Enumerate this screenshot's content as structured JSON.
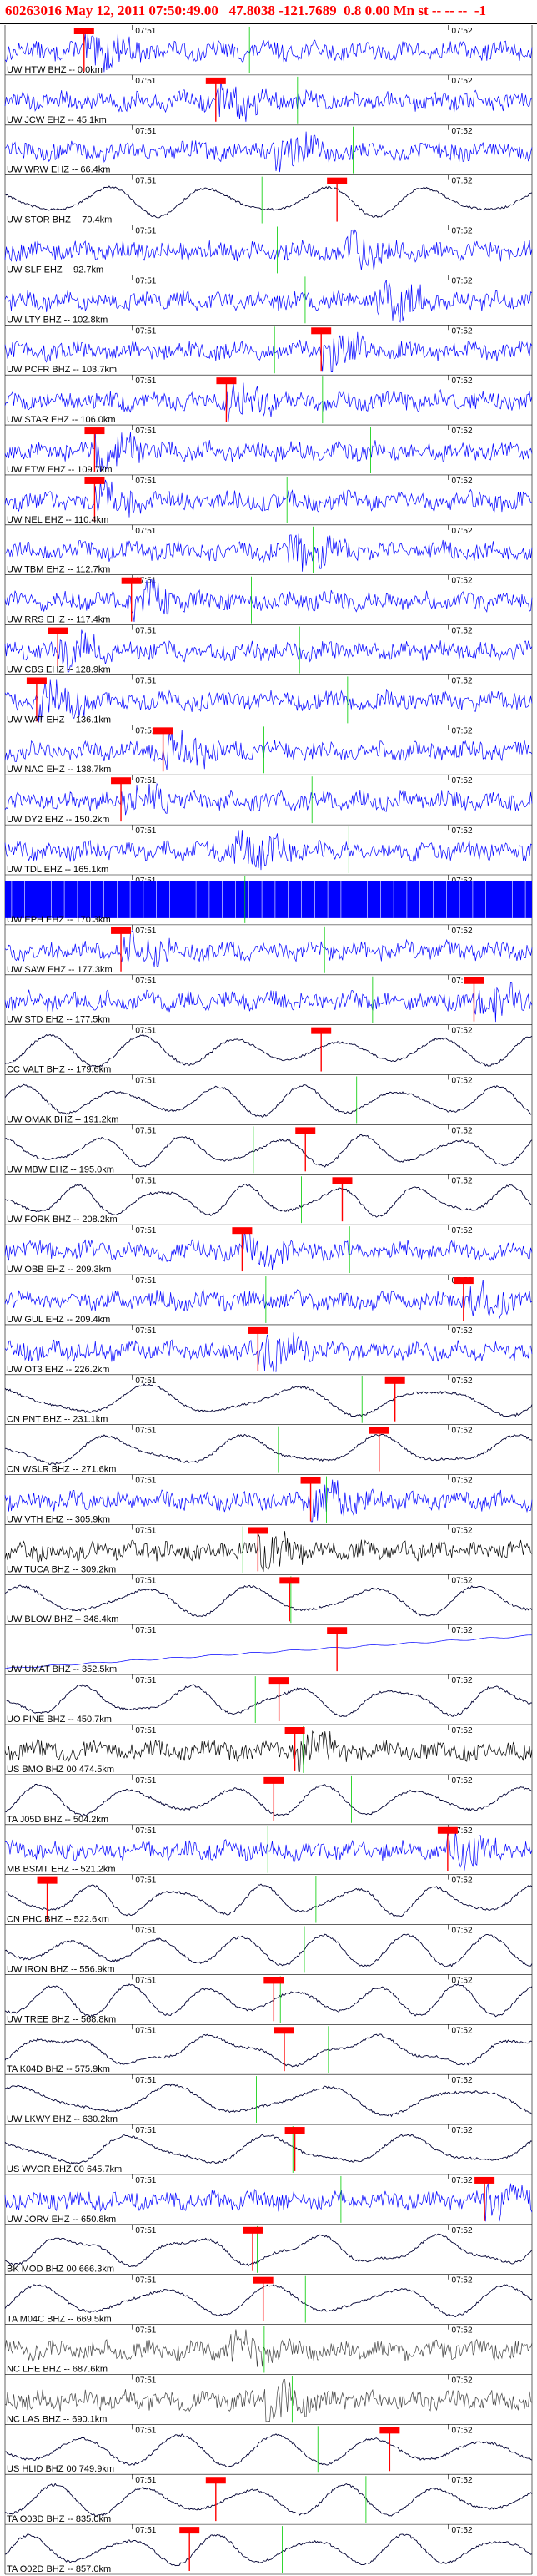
{
  "header": {
    "title": "60263016 May 12, 2011 07:50:49.00   47.8038 -121.7689  0.8 0.00 Mn st -- -- --  -1"
  },
  "colors": {
    "waveform": "#0000ff",
    "waveform_alt": "#000033",
    "pick_marker": "#ff0000",
    "arrival_line": "#00cc00",
    "header_text": "#ff0000"
  },
  "chart_data": {
    "type": "waveform",
    "title": "60263016 May 12, 2011 07:50:49.00   47.8038 -121.7689  0.8 0.00 Mn st -- -- --  -1",
    "x_unit": "time",
    "time_ticks": [
      "07:51",
      "07:52"
    ],
    "traces": [
      {
        "label": "UW HTW BHZ -- 0.0km",
        "times": [
          "07:51",
          "07:52"
        ],
        "style": "blue",
        "pick": 0.15
      },
      {
        "label": "UW JCW EHZ -- 45.1km",
        "times": [
          "07:51",
          "07:52"
        ],
        "style": "blue",
        "pick": 0.4
      },
      {
        "label": "UW WRW EHZ -- 66.4km",
        "times": [
          "07:51",
          "07:52"
        ],
        "style": "blue",
        "pick": null
      },
      {
        "label": "UW STOR BHZ -- 70.4km",
        "times": [
          "07:51",
          "07:52"
        ],
        "style": "dark",
        "pick": 0.63
      },
      {
        "label": "UW SLF EHZ -- 92.7km",
        "times": [
          "07:51",
          "07:52"
        ],
        "style": "blue",
        "pick": null
      },
      {
        "label": "UW LTY BHZ -- 102.8km",
        "times": [
          "07:51",
          "07:52"
        ],
        "style": "blue",
        "pick": null
      },
      {
        "label": "UW PCFR BHZ -- 103.7km",
        "times": [
          "07:51",
          "07:52"
        ],
        "style": "blue",
        "pick": 0.6
      },
      {
        "label": "UW STAR EHZ -- 106.0km",
        "times": [
          "07:51",
          "07:52"
        ],
        "style": "blue",
        "pick": 0.42
      },
      {
        "label": "UW ETW EHZ -- 109.7km",
        "times": [
          "07:51",
          "07:52"
        ],
        "style": "blue",
        "pick": 0.17
      },
      {
        "label": "UW NEL EHZ -- 110.4km",
        "times": [
          "07:51",
          "07:52"
        ],
        "style": "blue",
        "pick": 0.17
      },
      {
        "label": "UW TBM EHZ -- 112.7km",
        "times": [
          "07:51",
          "07:52"
        ],
        "style": "blue",
        "pick": null
      },
      {
        "label": "UW RRS EHZ -- 117.4km",
        "times": [
          "07:51",
          "07:52"
        ],
        "style": "blue",
        "pick": 0.24
      },
      {
        "label": "UW CBS EHZ -- 128.9km",
        "times": [
          "07:51",
          "07:52"
        ],
        "style": "blue",
        "pick": 0.1
      },
      {
        "label": "UW WAT EHZ -- 136.1km",
        "times": [
          "07:51",
          "07:52"
        ],
        "style": "blue",
        "pick": 0.06
      },
      {
        "label": "UW NAC EHZ -- 138.7km",
        "times": [
          "07:51",
          "07:52"
        ],
        "style": "blue",
        "pick": 0.3
      },
      {
        "label": "UW DY2 EHZ -- 150.2km",
        "times": [
          "07:51",
          "07:52"
        ],
        "style": "blue",
        "pick": 0.22
      },
      {
        "label": "UW TDL EHZ -- 165.1km",
        "times": [
          "07:51",
          "07:52"
        ],
        "style": "blue",
        "pick": null
      },
      {
        "label": "UW EPH EHZ -- 170.3km",
        "times": [
          "07:51",
          "07:52"
        ],
        "style": "solid",
        "pick": null
      },
      {
        "label": "UW SAW EHZ -- 177.3km",
        "times": [
          "07:51",
          "07:52"
        ],
        "style": "blue",
        "pick": 0.22
      },
      {
        "label": "UW STD EHZ -- 177.5km",
        "times": [
          "07:51",
          "07:52"
        ],
        "style": "blue",
        "pick": 0.89
      },
      {
        "label": "CC VALT BHZ -- 179.6km",
        "times": [
          "07:51",
          "07:52"
        ],
        "style": "dark",
        "pick": 0.6
      },
      {
        "label": "UW OMAK BHZ -- 191.2km",
        "times": [
          "07:51",
          "07:52"
        ],
        "style": "dark",
        "pick": null
      },
      {
        "label": "UW MBW EHZ -- 195.0km",
        "times": [
          "07:51",
          "07:52"
        ],
        "style": "dark",
        "pick": 0.57
      },
      {
        "label": "UW FORK BHZ -- 208.2km",
        "times": [
          "07:51",
          "07:52"
        ],
        "style": "dark",
        "pick": 0.64
      },
      {
        "label": "UW OBB EHZ -- 209.3km",
        "times": [
          "07:51",
          "07:52"
        ],
        "style": "blue",
        "pick": 0.45
      },
      {
        "label": "UW GUL EHZ -- 209.4km",
        "times": [
          "07:51",
          "07:52"
        ],
        "style": "blue",
        "pick": 0.87
      },
      {
        "label": "UW OT3 EHZ -- 226.2km",
        "times": [
          "07:51",
          "07:52"
        ],
        "style": "blue",
        "pick": 0.48
      },
      {
        "label": "CN PNT BHZ -- 231.1km",
        "times": [
          "07:51",
          "07:52"
        ],
        "style": "dark",
        "pick": 0.74
      },
      {
        "label": "CN WSLR BHZ -- 271.6km",
        "times": [
          "07:51",
          "07:52"
        ],
        "style": "dark",
        "pick": 0.71
      },
      {
        "label": "UW VTH EHZ -- 305.9km",
        "times": [
          "07:51",
          "07:52"
        ],
        "style": "blue",
        "pick": 0.58
      },
      {
        "label": "UW TUCA BHZ -- 309.2km",
        "times": [
          "07:51",
          "07:52"
        ],
        "style": "black",
        "pick": 0.48
      },
      {
        "label": "UW BLOW BHZ -- 348.4km",
        "times": [
          "07:51",
          "07:52"
        ],
        "style": "dark",
        "pick": 0.54
      },
      {
        "label": "UW UMAT BHZ -- 352.5km",
        "times": [
          "07:51",
          "07:52"
        ],
        "style": "drift",
        "pick": 0.63
      },
      {
        "label": "UO PINE BHZ -- 450.7km",
        "times": [
          "07:51",
          "07:52"
        ],
        "style": "dark",
        "pick": 0.52
      },
      {
        "label": "US BMO BHZ 00 474.5km",
        "times": [
          "07:51",
          "07:52"
        ],
        "style": "black",
        "pick": 0.55
      },
      {
        "label": "TA J05D BHZ -- 504.2km",
        "times": [
          "07:51",
          "07:52"
        ],
        "style": "dark",
        "pick": 0.51
      },
      {
        "label": "MB BSMT EHZ -- 521.2km",
        "times": [
          "07:51",
          "07:52"
        ],
        "style": "blue",
        "pick": 0.84
      },
      {
        "label": "CN PHC BHZ -- 522.6km",
        "times": [
          "07:51",
          "07:52"
        ],
        "style": "dark",
        "pick": 0.08
      },
      {
        "label": "UW IRON BHZ -- 556.9km",
        "times": [
          "07:51",
          "07:52"
        ],
        "style": "dark",
        "pick": null
      },
      {
        "label": "UW TREE BHZ -- 568.8km",
        "times": [
          "07:51",
          "07:52"
        ],
        "style": "dark",
        "pick": 0.51
      },
      {
        "label": "TA K04D BHZ -- 575.9km",
        "times": [
          "07:51",
          "07:52"
        ],
        "style": "dark",
        "pick": 0.53
      },
      {
        "label": "UW LKWY BHZ -- 630.2km",
        "times": [
          "07:51",
          "07:52"
        ],
        "style": "dark",
        "pick": null
      },
      {
        "label": "US WVOR BHZ 00 645.7km",
        "times": [
          "07:51",
          "07:52"
        ],
        "style": "dark",
        "pick": 0.55
      },
      {
        "label": "UW JORV EHZ -- 650.8km",
        "times": [
          "07:51",
          "07:52"
        ],
        "style": "blue",
        "pick": 0.91
      },
      {
        "label": "BK MOD BHZ 00 666.3km",
        "times": [
          "07:51",
          "07:52"
        ],
        "style": "dark",
        "pick": 0.47
      },
      {
        "label": "TA M04C BHZ -- 669.5km",
        "times": [
          "07:51",
          "07:52"
        ],
        "style": "dark",
        "pick": 0.49
      },
      {
        "label": "NC LHE BHZ -- 687.6km",
        "times": [
          "07:51",
          "07:52"
        ],
        "style": "gray",
        "pick": null
      },
      {
        "label": "NC LAS BHZ -- 690.1km",
        "times": [
          "07:51",
          "07:52"
        ],
        "style": "gray",
        "pick": null
      },
      {
        "label": "US HLID BHZ 00 749.9km",
        "times": [
          "07:51",
          "07:52"
        ],
        "style": "dark",
        "pick": 0.73
      },
      {
        "label": "TA O03D BHZ -- 835.0km",
        "times": [
          "07:51",
          "07:52"
        ],
        "style": "dark",
        "pick": 0.4
      },
      {
        "label": "TA O02D BHZ -- 857.0km",
        "times": [
          "07:51",
          "07:52"
        ],
        "style": "dark",
        "pick": 0.35
      }
    ]
  }
}
